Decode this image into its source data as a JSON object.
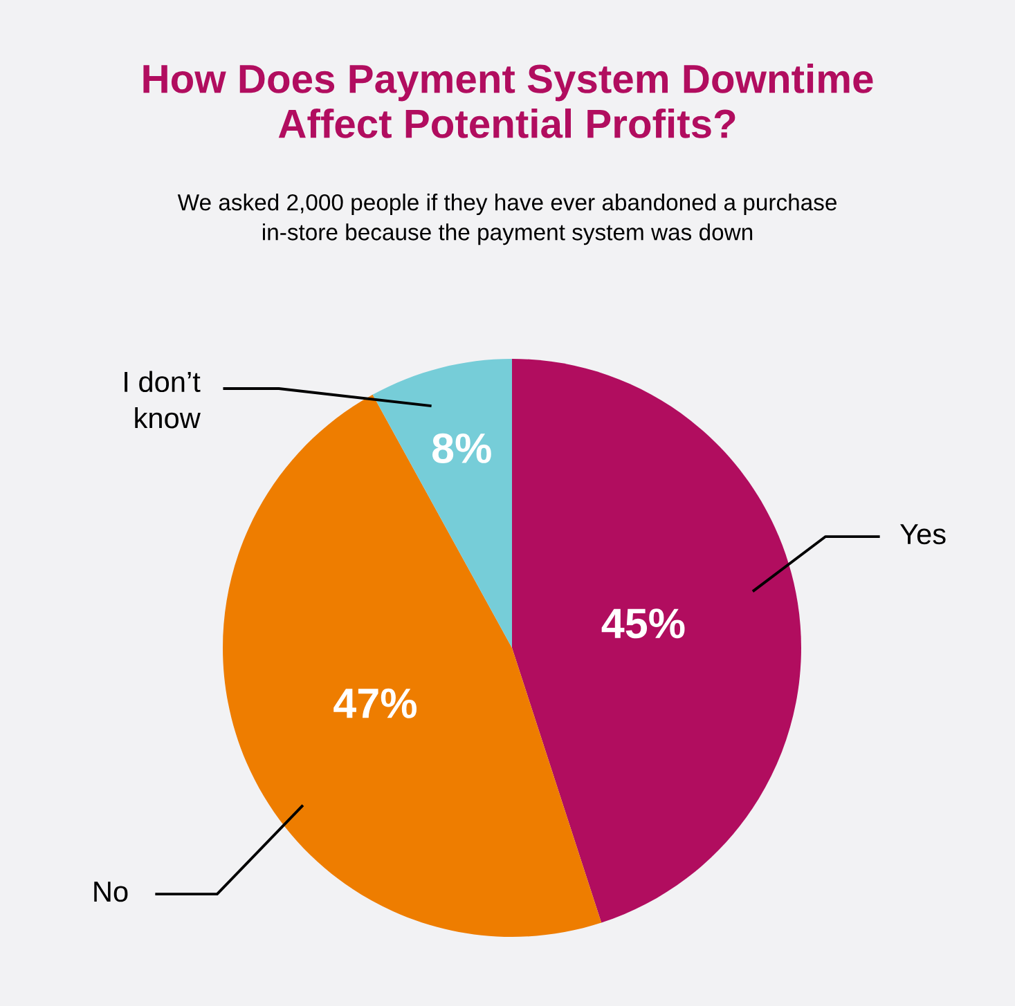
{
  "chart_data": {
    "type": "pie",
    "title": "How Does Payment System Downtime\nAffect Potential Profits?",
    "subtitle": "We asked 2,000 people if they have ever abandoned a purchase\nin-store because the payment system was down",
    "categories": [
      "Yes",
      "No",
      "I don’t\nknow"
    ],
    "values": [
      45,
      47,
      8
    ],
    "colors": [
      "#b10d5f",
      "#ee7d00",
      "#76cdd8"
    ],
    "value_labels": [
      "45%",
      "47%",
      "8%"
    ]
  }
}
